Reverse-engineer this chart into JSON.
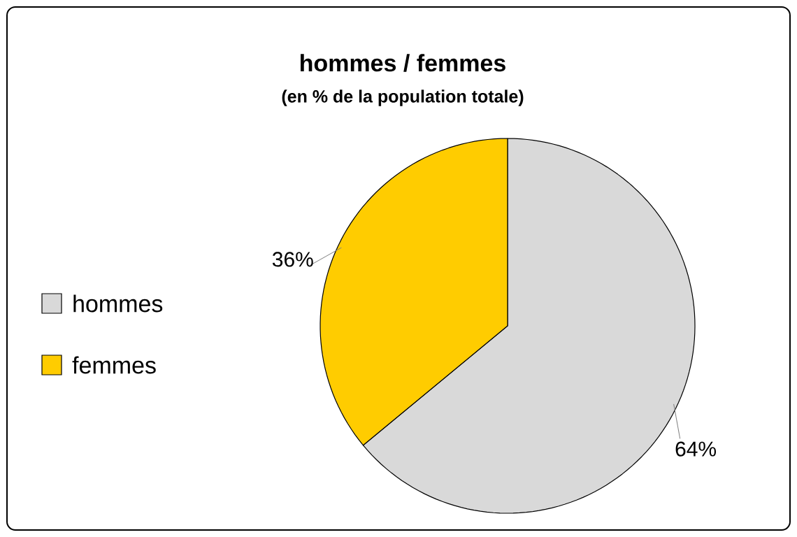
{
  "chart_data": {
    "type": "pie",
    "title": "hommes / femmes",
    "subtitle": "(en % de la population totale)",
    "categories": [
      "hommes",
      "femmes"
    ],
    "values": [
      64,
      36
    ],
    "colors": [
      "#d9d9d9",
      "#ffcc00"
    ],
    "value_labels": [
      "64%",
      "36%"
    ],
    "legend": "left"
  }
}
